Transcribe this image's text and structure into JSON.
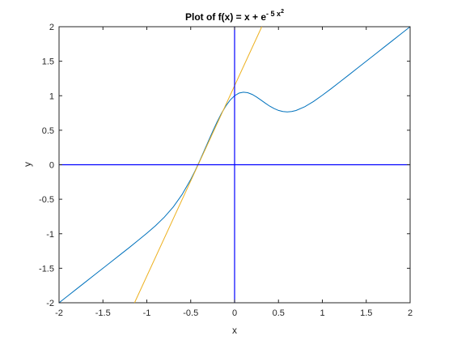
{
  "chart_data": {
    "type": "line",
    "title": {
      "prefix": "Plot of f(x) = x + e",
      "exponent": "- 5 x",
      "exponent_power": "2"
    },
    "xlabel": "x",
    "ylabel": "y",
    "xlim": [
      -2,
      2
    ],
    "ylim": [
      -2,
      2
    ],
    "xticks": [
      -2,
      -1.5,
      -1,
      -0.5,
      0,
      0.5,
      1,
      1.5,
      2
    ],
    "yticks": [
      -2,
      -1.5,
      -1,
      -0.5,
      0,
      0.5,
      1,
      1.5,
      2
    ],
    "xtick_labels": [
      "-2",
      "-1.5",
      "-1",
      "-0.5",
      "0",
      "0.5",
      "1",
      "1.5",
      "2"
    ],
    "ytick_labels": [
      "-2",
      "-1.5",
      "-1",
      "-0.5",
      "0",
      "0.5",
      "1",
      "1.5",
      "2"
    ],
    "grid": false,
    "series": [
      {
        "color": "#0072BD",
        "x": [
          -2.0,
          -1.9,
          -1.8,
          -1.7,
          -1.6,
          -1.5,
          -1.4,
          -1.3,
          -1.2,
          -1.1,
          -1.0,
          -0.9,
          -0.8,
          -0.7,
          -0.6,
          -0.5,
          -0.45,
          -0.4,
          -0.35,
          -0.3,
          -0.25,
          -0.2,
          -0.15,
          -0.1,
          -0.05,
          0.0,
          0.05,
          0.1,
          0.15,
          0.2,
          0.25,
          0.3,
          0.35,
          0.4,
          0.45,
          0.5,
          0.55,
          0.6,
          0.65,
          0.7,
          0.8,
          0.9,
          1.0,
          1.1,
          1.2,
          1.3,
          1.4,
          1.5,
          1.6,
          1.7,
          1.8,
          1.9,
          2.0
        ],
        "y": [
          -2.0,
          -1.9,
          -1.8,
          -1.7,
          -1.6,
          -1.5,
          -1.4,
          -1.3,
          -1.2,
          -1.097,
          -0.993,
          -0.883,
          -0.759,
          -0.614,
          -0.435,
          -0.214,
          -0.088,
          0.049,
          0.192,
          0.338,
          0.482,
          0.619,
          0.744,
          0.851,
          0.938,
          1.0,
          1.038,
          1.051,
          1.044,
          1.019,
          0.982,
          0.938,
          0.892,
          0.849,
          0.814,
          0.787,
          0.771,
          0.765,
          0.771,
          0.786,
          0.841,
          0.917,
          1.007,
          1.102,
          1.201,
          1.3,
          1.4,
          1.5,
          1.6,
          1.7,
          1.8,
          1.9,
          2.0
        ]
      },
      {
        "color": "#EDB120",
        "x": [
          -1.14,
          0.31
        ],
        "y": [
          -2.0,
          2.0
        ]
      },
      {
        "color": "#0000FF",
        "x": [
          -2,
          2
        ],
        "y": [
          0,
          0
        ]
      },
      {
        "color": "#0000FF",
        "x": [
          0,
          0
        ],
        "y": [
          -2,
          2
        ]
      }
    ]
  }
}
